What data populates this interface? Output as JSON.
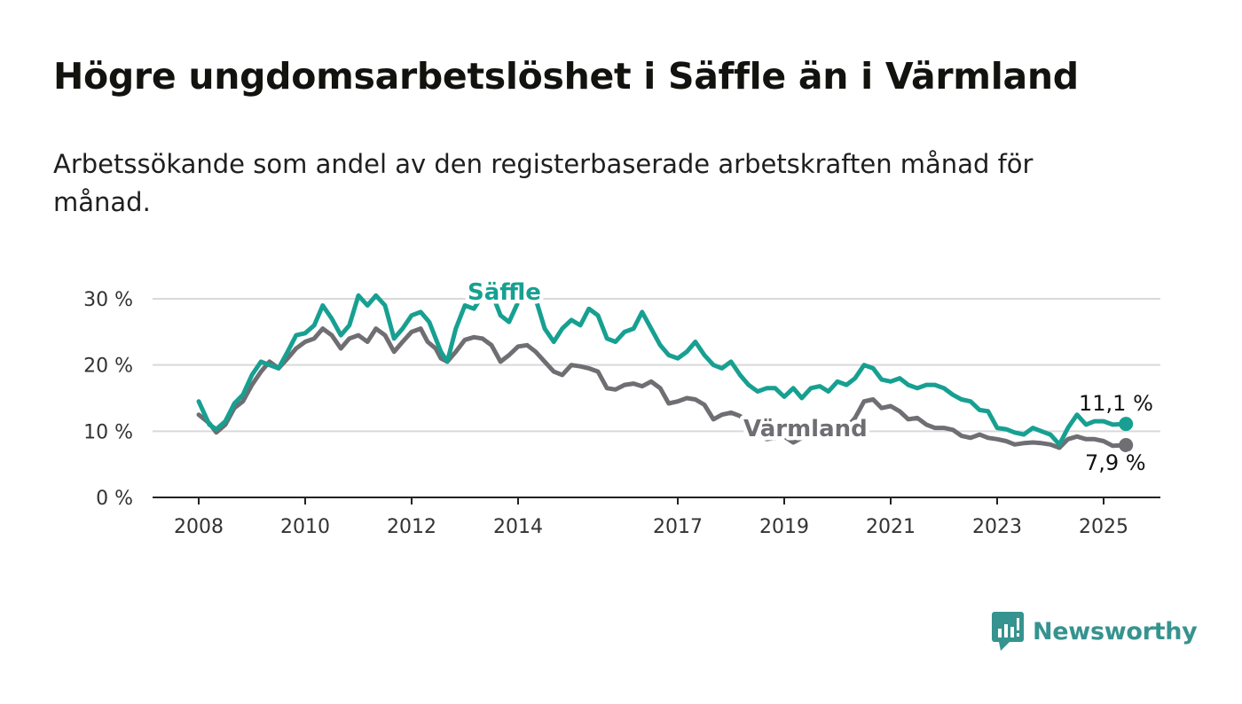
{
  "title": "Högre ungdomsarbetslöshet i Säffle än i Värmland",
  "subtitle": "Arbetssökande som andel av den registerbaserade arbetskraften månad för månad.",
  "brand": {
    "name": "Newsworthy",
    "icon": "newsworthy-logo-icon"
  },
  "colors": {
    "saffle": "#17a091",
    "varmland": "#6e6e73",
    "grid": "#d9d9d9",
    "axis": "#222222"
  },
  "chart_data": {
    "type": "line",
    "x_unit": "year",
    "xlim": [
      2007.1,
      2026.3
    ],
    "ylim": [
      0,
      30
    ],
    "y_ticks": [
      {
        "value": 0,
        "label": "0 %"
      },
      {
        "value": 10,
        "label": "10 %"
      },
      {
        "value": 20,
        "label": "20 %"
      },
      {
        "value": 30,
        "label": "30 %"
      }
    ],
    "x_ticks": [
      {
        "value": 2008,
        "label": "2008"
      },
      {
        "value": 2010,
        "label": "2010"
      },
      {
        "value": 2012,
        "label": "2012"
      },
      {
        "value": 2014,
        "label": "2014"
      },
      {
        "value": 2017,
        "label": "2017"
      },
      {
        "value": 2019,
        "label": "2019"
      },
      {
        "value": 2021,
        "label": "2021"
      },
      {
        "value": 2023,
        "label": "2023"
      },
      {
        "value": 2025,
        "label": "2025"
      }
    ],
    "grid": true,
    "series": [
      {
        "name": "Värmland",
        "color": "#6e6e73",
        "end_label": "7,9 %",
        "points": [
          [
            2008.0,
            12.5
          ],
          [
            2008.2,
            11.2
          ],
          [
            2008.33,
            9.8
          ],
          [
            2008.5,
            11.0
          ],
          [
            2008.67,
            13.5
          ],
          [
            2008.83,
            14.5
          ],
          [
            2009.0,
            17.0
          ],
          [
            2009.17,
            19.0
          ],
          [
            2009.33,
            20.5
          ],
          [
            2009.5,
            19.5
          ],
          [
            2009.67,
            21.0
          ],
          [
            2009.83,
            22.5
          ],
          [
            2010.0,
            23.5
          ],
          [
            2010.17,
            24.0
          ],
          [
            2010.33,
            25.5
          ],
          [
            2010.5,
            24.5
          ],
          [
            2010.67,
            22.5
          ],
          [
            2010.83,
            24.0
          ],
          [
            2011.0,
            24.5
          ],
          [
            2011.17,
            23.5
          ],
          [
            2011.33,
            25.5
          ],
          [
            2011.5,
            24.5
          ],
          [
            2011.67,
            22.0
          ],
          [
            2011.83,
            23.5
          ],
          [
            2012.0,
            25.0
          ],
          [
            2012.17,
            25.5
          ],
          [
            2012.3,
            23.5
          ],
          [
            2012.45,
            22.5
          ],
          [
            2012.55,
            21.0
          ],
          [
            2012.67,
            20.5
          ],
          [
            2012.83,
            22.0
          ],
          [
            2013.0,
            23.8
          ],
          [
            2013.17,
            24.2
          ],
          [
            2013.33,
            24.0
          ],
          [
            2013.5,
            23.0
          ],
          [
            2013.67,
            20.5
          ],
          [
            2013.83,
            21.5
          ],
          [
            2014.0,
            22.8
          ],
          [
            2014.17,
            23.0
          ],
          [
            2014.33,
            22.0
          ],
          [
            2014.5,
            20.5
          ],
          [
            2014.67,
            19.0
          ],
          [
            2014.83,
            18.5
          ],
          [
            2015.0,
            20.0
          ],
          [
            2015.17,
            19.8
          ],
          [
            2015.33,
            19.5
          ],
          [
            2015.5,
            19.0
          ],
          [
            2015.67,
            16.5
          ],
          [
            2015.83,
            16.3
          ],
          [
            2016.0,
            17.0
          ],
          [
            2016.17,
            17.2
          ],
          [
            2016.33,
            16.8
          ],
          [
            2016.5,
            17.5
          ],
          [
            2016.67,
            16.5
          ],
          [
            2016.83,
            14.2
          ],
          [
            2017.0,
            14.5
          ],
          [
            2017.17,
            15.0
          ],
          [
            2017.33,
            14.8
          ],
          [
            2017.5,
            14.0
          ],
          [
            2017.67,
            11.8
          ],
          [
            2017.83,
            12.5
          ],
          [
            2018.0,
            12.8
          ],
          [
            2018.17,
            12.3
          ],
          [
            2018.33,
            11.0
          ],
          [
            2018.5,
            9.5
          ],
          [
            2018.67,
            8.8
          ],
          [
            2018.83,
            9.0
          ],
          [
            2019.0,
            9.2
          ],
          [
            2019.17,
            8.3
          ],
          [
            2019.33,
            9.0
          ],
          [
            2019.5,
            9.5
          ],
          [
            2019.67,
            10.5
          ],
          [
            2019.83,
            11.0
          ],
          [
            2020.0,
            11.0
          ],
          [
            2020.17,
            10.5
          ],
          [
            2020.33,
            12.0
          ],
          [
            2020.5,
            14.5
          ],
          [
            2020.67,
            14.8
          ],
          [
            2020.83,
            13.5
          ],
          [
            2021.0,
            13.8
          ],
          [
            2021.17,
            13.0
          ],
          [
            2021.33,
            11.8
          ],
          [
            2021.5,
            12.0
          ],
          [
            2021.67,
            11.0
          ],
          [
            2021.83,
            10.5
          ],
          [
            2022.0,
            10.5
          ],
          [
            2022.17,
            10.2
          ],
          [
            2022.33,
            9.3
          ],
          [
            2022.5,
            9.0
          ],
          [
            2022.67,
            9.5
          ],
          [
            2022.83,
            9.0
          ],
          [
            2023.0,
            8.8
          ],
          [
            2023.17,
            8.5
          ],
          [
            2023.33,
            8.0
          ],
          [
            2023.5,
            8.2
          ],
          [
            2023.67,
            8.3
          ],
          [
            2023.83,
            8.2
          ],
          [
            2024.0,
            8.0
          ],
          [
            2024.17,
            7.5
          ],
          [
            2024.33,
            8.8
          ],
          [
            2024.5,
            9.2
          ],
          [
            2024.67,
            8.8
          ],
          [
            2024.83,
            8.8
          ],
          [
            2025.0,
            8.5
          ],
          [
            2025.17,
            7.8
          ],
          [
            2025.42,
            7.9
          ]
        ]
      },
      {
        "name": "Säffle",
        "color": "#17a091",
        "end_label": "11,1 %",
        "points": [
          [
            2008.0,
            14.5
          ],
          [
            2008.2,
            11.0
          ],
          [
            2008.33,
            10.3
          ],
          [
            2008.5,
            11.5
          ],
          [
            2008.67,
            14.2
          ],
          [
            2008.83,
            15.5
          ],
          [
            2009.0,
            18.5
          ],
          [
            2009.17,
            20.5
          ],
          [
            2009.33,
            20.0
          ],
          [
            2009.5,
            19.5
          ],
          [
            2009.67,
            22.0
          ],
          [
            2009.83,
            24.5
          ],
          [
            2010.0,
            24.8
          ],
          [
            2010.17,
            26.0
          ],
          [
            2010.33,
            29.0
          ],
          [
            2010.5,
            27.0
          ],
          [
            2010.67,
            24.5
          ],
          [
            2010.83,
            26.0
          ],
          [
            2011.0,
            30.5
          ],
          [
            2011.17,
            29.0
          ],
          [
            2011.33,
            30.5
          ],
          [
            2011.5,
            29.0
          ],
          [
            2011.67,
            24.0
          ],
          [
            2011.83,
            25.5
          ],
          [
            2012.0,
            27.5
          ],
          [
            2012.17,
            28.0
          ],
          [
            2012.33,
            26.5
          ],
          [
            2012.55,
            22.0
          ],
          [
            2012.67,
            20.5
          ],
          [
            2012.83,
            25.5
          ],
          [
            2013.0,
            29.0
          ],
          [
            2013.17,
            28.5
          ],
          [
            2013.33,
            30.5
          ],
          [
            2013.5,
            31.0
          ],
          [
            2013.67,
            27.5
          ],
          [
            2013.83,
            26.5
          ],
          [
            2014.0,
            29.5
          ],
          [
            2014.17,
            31.0
          ],
          [
            2014.33,
            30.0
          ],
          [
            2014.5,
            25.5
          ],
          [
            2014.67,
            23.5
          ],
          [
            2014.83,
            25.5
          ],
          [
            2015.0,
            26.8
          ],
          [
            2015.17,
            26.0
          ],
          [
            2015.33,
            28.5
          ],
          [
            2015.5,
            27.5
          ],
          [
            2015.67,
            24.0
          ],
          [
            2015.83,
            23.5
          ],
          [
            2016.0,
            25.0
          ],
          [
            2016.17,
            25.5
          ],
          [
            2016.33,
            28.0
          ],
          [
            2016.5,
            25.5
          ],
          [
            2016.67,
            23.0
          ],
          [
            2016.83,
            21.5
          ],
          [
            2017.0,
            21.0
          ],
          [
            2017.17,
            22.0
          ],
          [
            2017.33,
            23.5
          ],
          [
            2017.5,
            21.5
          ],
          [
            2017.67,
            20.0
          ],
          [
            2017.83,
            19.5
          ],
          [
            2018.0,
            20.5
          ],
          [
            2018.17,
            18.5
          ],
          [
            2018.33,
            17.0
          ],
          [
            2018.5,
            16.0
          ],
          [
            2018.67,
            16.5
          ],
          [
            2018.83,
            16.5
          ],
          [
            2019.0,
            15.2
          ],
          [
            2019.17,
            16.5
          ],
          [
            2019.33,
            15.0
          ],
          [
            2019.5,
            16.5
          ],
          [
            2019.67,
            16.8
          ],
          [
            2019.83,
            16.0
          ],
          [
            2020.0,
            17.5
          ],
          [
            2020.17,
            17.0
          ],
          [
            2020.33,
            18.0
          ],
          [
            2020.5,
            20.0
          ],
          [
            2020.67,
            19.5
          ],
          [
            2020.83,
            17.8
          ],
          [
            2021.0,
            17.5
          ],
          [
            2021.17,
            18.0
          ],
          [
            2021.33,
            17.0
          ],
          [
            2021.5,
            16.5
          ],
          [
            2021.67,
            17.0
          ],
          [
            2021.83,
            17.0
          ],
          [
            2022.0,
            16.5
          ],
          [
            2022.17,
            15.5
          ],
          [
            2022.33,
            14.8
          ],
          [
            2022.5,
            14.5
          ],
          [
            2022.67,
            13.2
          ],
          [
            2022.83,
            13.0
          ],
          [
            2023.0,
            10.5
          ],
          [
            2023.17,
            10.3
          ],
          [
            2023.33,
            9.8
          ],
          [
            2023.5,
            9.5
          ],
          [
            2023.67,
            10.5
          ],
          [
            2023.83,
            10.0
          ],
          [
            2024.0,
            9.5
          ],
          [
            2024.17,
            8.0
          ],
          [
            2024.33,
            10.5
          ],
          [
            2024.5,
            12.5
          ],
          [
            2024.67,
            11.0
          ],
          [
            2024.83,
            11.5
          ],
          [
            2025.0,
            11.5
          ],
          [
            2025.17,
            11.0
          ],
          [
            2025.42,
            11.1
          ]
        ]
      }
    ]
  }
}
